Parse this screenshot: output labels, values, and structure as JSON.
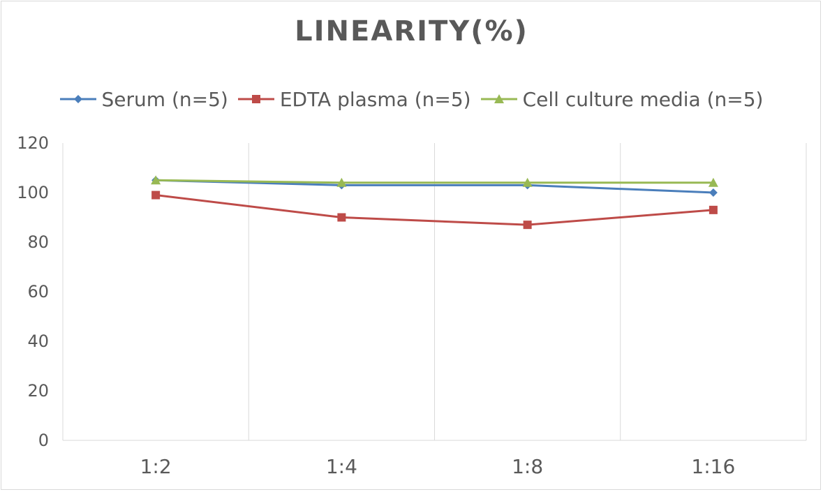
{
  "chart_data": {
    "type": "line",
    "title": "LINEARITY(%)",
    "xlabel": "",
    "ylabel": "",
    "categories": [
      "1:2",
      "1:4",
      "1:8",
      "1:16"
    ],
    "ylim": [
      0,
      120
    ],
    "yticks": [
      0,
      20,
      40,
      60,
      80,
      100,
      120
    ],
    "grid": "vertical",
    "legend_position": "top",
    "series": [
      {
        "name": "Serum (n=5)",
        "values": [
          105,
          103,
          103,
          100
        ],
        "color": "#4a7ebb",
        "marker": "diamond"
      },
      {
        "name": "EDTA plasma (n=5)",
        "values": [
          99,
          90,
          87,
          93
        ],
        "color": "#be4b48",
        "marker": "square"
      },
      {
        "name": "Cell culture media (n=5)",
        "values": [
          105,
          104,
          104,
          104
        ],
        "color": "#98b954",
        "marker": "triangle"
      }
    ]
  }
}
